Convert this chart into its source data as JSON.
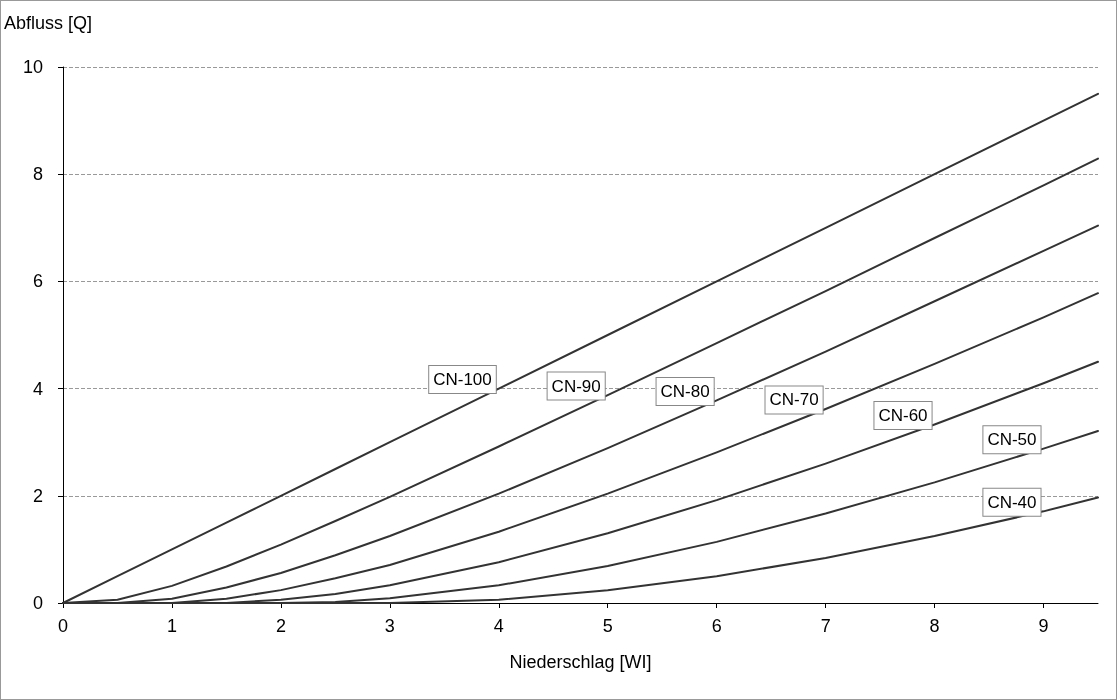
{
  "chart_data": {
    "type": "line",
    "xlabel": "Niederschlag [WI]",
    "ylabel": "Abfluss [Q]",
    "x": [
      0,
      0.5,
      1,
      1.5,
      2,
      2.5,
      3,
      4,
      5,
      6,
      7,
      8,
      9,
      9.5
    ],
    "series": [
      {
        "name": "CN-100",
        "color": "#333333",
        "values": [
          0,
          0.5,
          1,
          1.5,
          2,
          2.5,
          3,
          4,
          5,
          6,
          7,
          8,
          9,
          9.5
        ]
      },
      {
        "name": "CN-90",
        "color": "#333333",
        "values": [
          0,
          0.06,
          0.32,
          0.68,
          1.09,
          1.53,
          1.98,
          2.92,
          3.88,
          4.85,
          5.82,
          6.81,
          7.79,
          8.29
        ]
      },
      {
        "name": "CN-80",
        "color": "#333333",
        "values": [
          0,
          0,
          0.08,
          0.29,
          0.56,
          0.89,
          1.25,
          2.04,
          2.89,
          3.78,
          4.69,
          5.63,
          6.57,
          7.04
        ]
      },
      {
        "name": "CN-70",
        "color": "#333333",
        "values": [
          0,
          0,
          0,
          0.08,
          0.24,
          0.46,
          0.71,
          1.33,
          2.04,
          2.81,
          3.62,
          4.46,
          5.33,
          5.78
        ]
      },
      {
        "name": "CN-60",
        "color": "#333333",
        "values": [
          0,
          0,
          0,
          0,
          0.06,
          0.17,
          0.33,
          0.76,
          1.3,
          1.92,
          2.6,
          3.33,
          4.1,
          4.5
        ]
      },
      {
        "name": "CN-50",
        "color": "#333333",
        "values": [
          0,
          0,
          0,
          0,
          0,
          0.02,
          0.09,
          0.33,
          0.69,
          1.14,
          1.67,
          2.25,
          2.88,
          3.21
        ]
      },
      {
        "name": "CN-40",
        "color": "#333333",
        "values": [
          0,
          0,
          0,
          0,
          0,
          0,
          0,
          0.06,
          0.24,
          0.5,
          0.84,
          1.25,
          1.71,
          1.97
        ]
      }
    ],
    "xlim": [
      0,
      9.5
    ],
    "xticks": [
      0,
      1,
      2,
      3,
      4,
      5,
      6,
      7,
      8,
      9
    ],
    "ylim": [
      0,
      10
    ],
    "yticks": [
      0,
      2,
      4,
      6,
      8,
      10
    ],
    "grid": "y",
    "legend": false,
    "marker": "none",
    "line_style": "solid"
  }
}
